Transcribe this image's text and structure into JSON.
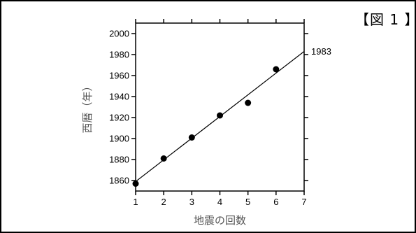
{
  "figure_label": "【図 1 】",
  "chart_data": {
    "type": "scatter",
    "xlabel": "地震の回数",
    "ylabel": "西暦（年）",
    "xlim": [
      1,
      7
    ],
    "ylim": [
      1850,
      2010
    ],
    "x_ticks": [
      1,
      2,
      3,
      4,
      5,
      6,
      7
    ],
    "y_ticks": [
      1860,
      1880,
      1900,
      1920,
      1940,
      1960,
      1980,
      2000
    ],
    "grid": false,
    "series": [
      {
        "x": [
          1,
          2,
          3,
          4,
          5,
          6
        ],
        "y": [
          1857,
          1881,
          1901,
          1922,
          1934,
          1966
        ]
      }
    ],
    "trend_line": {
      "x": [
        1,
        7
      ],
      "y": [
        1859,
        1983
      ]
    },
    "annotations": [
      {
        "text": "1983",
        "x": 7,
        "y": 1983
      }
    ]
  }
}
